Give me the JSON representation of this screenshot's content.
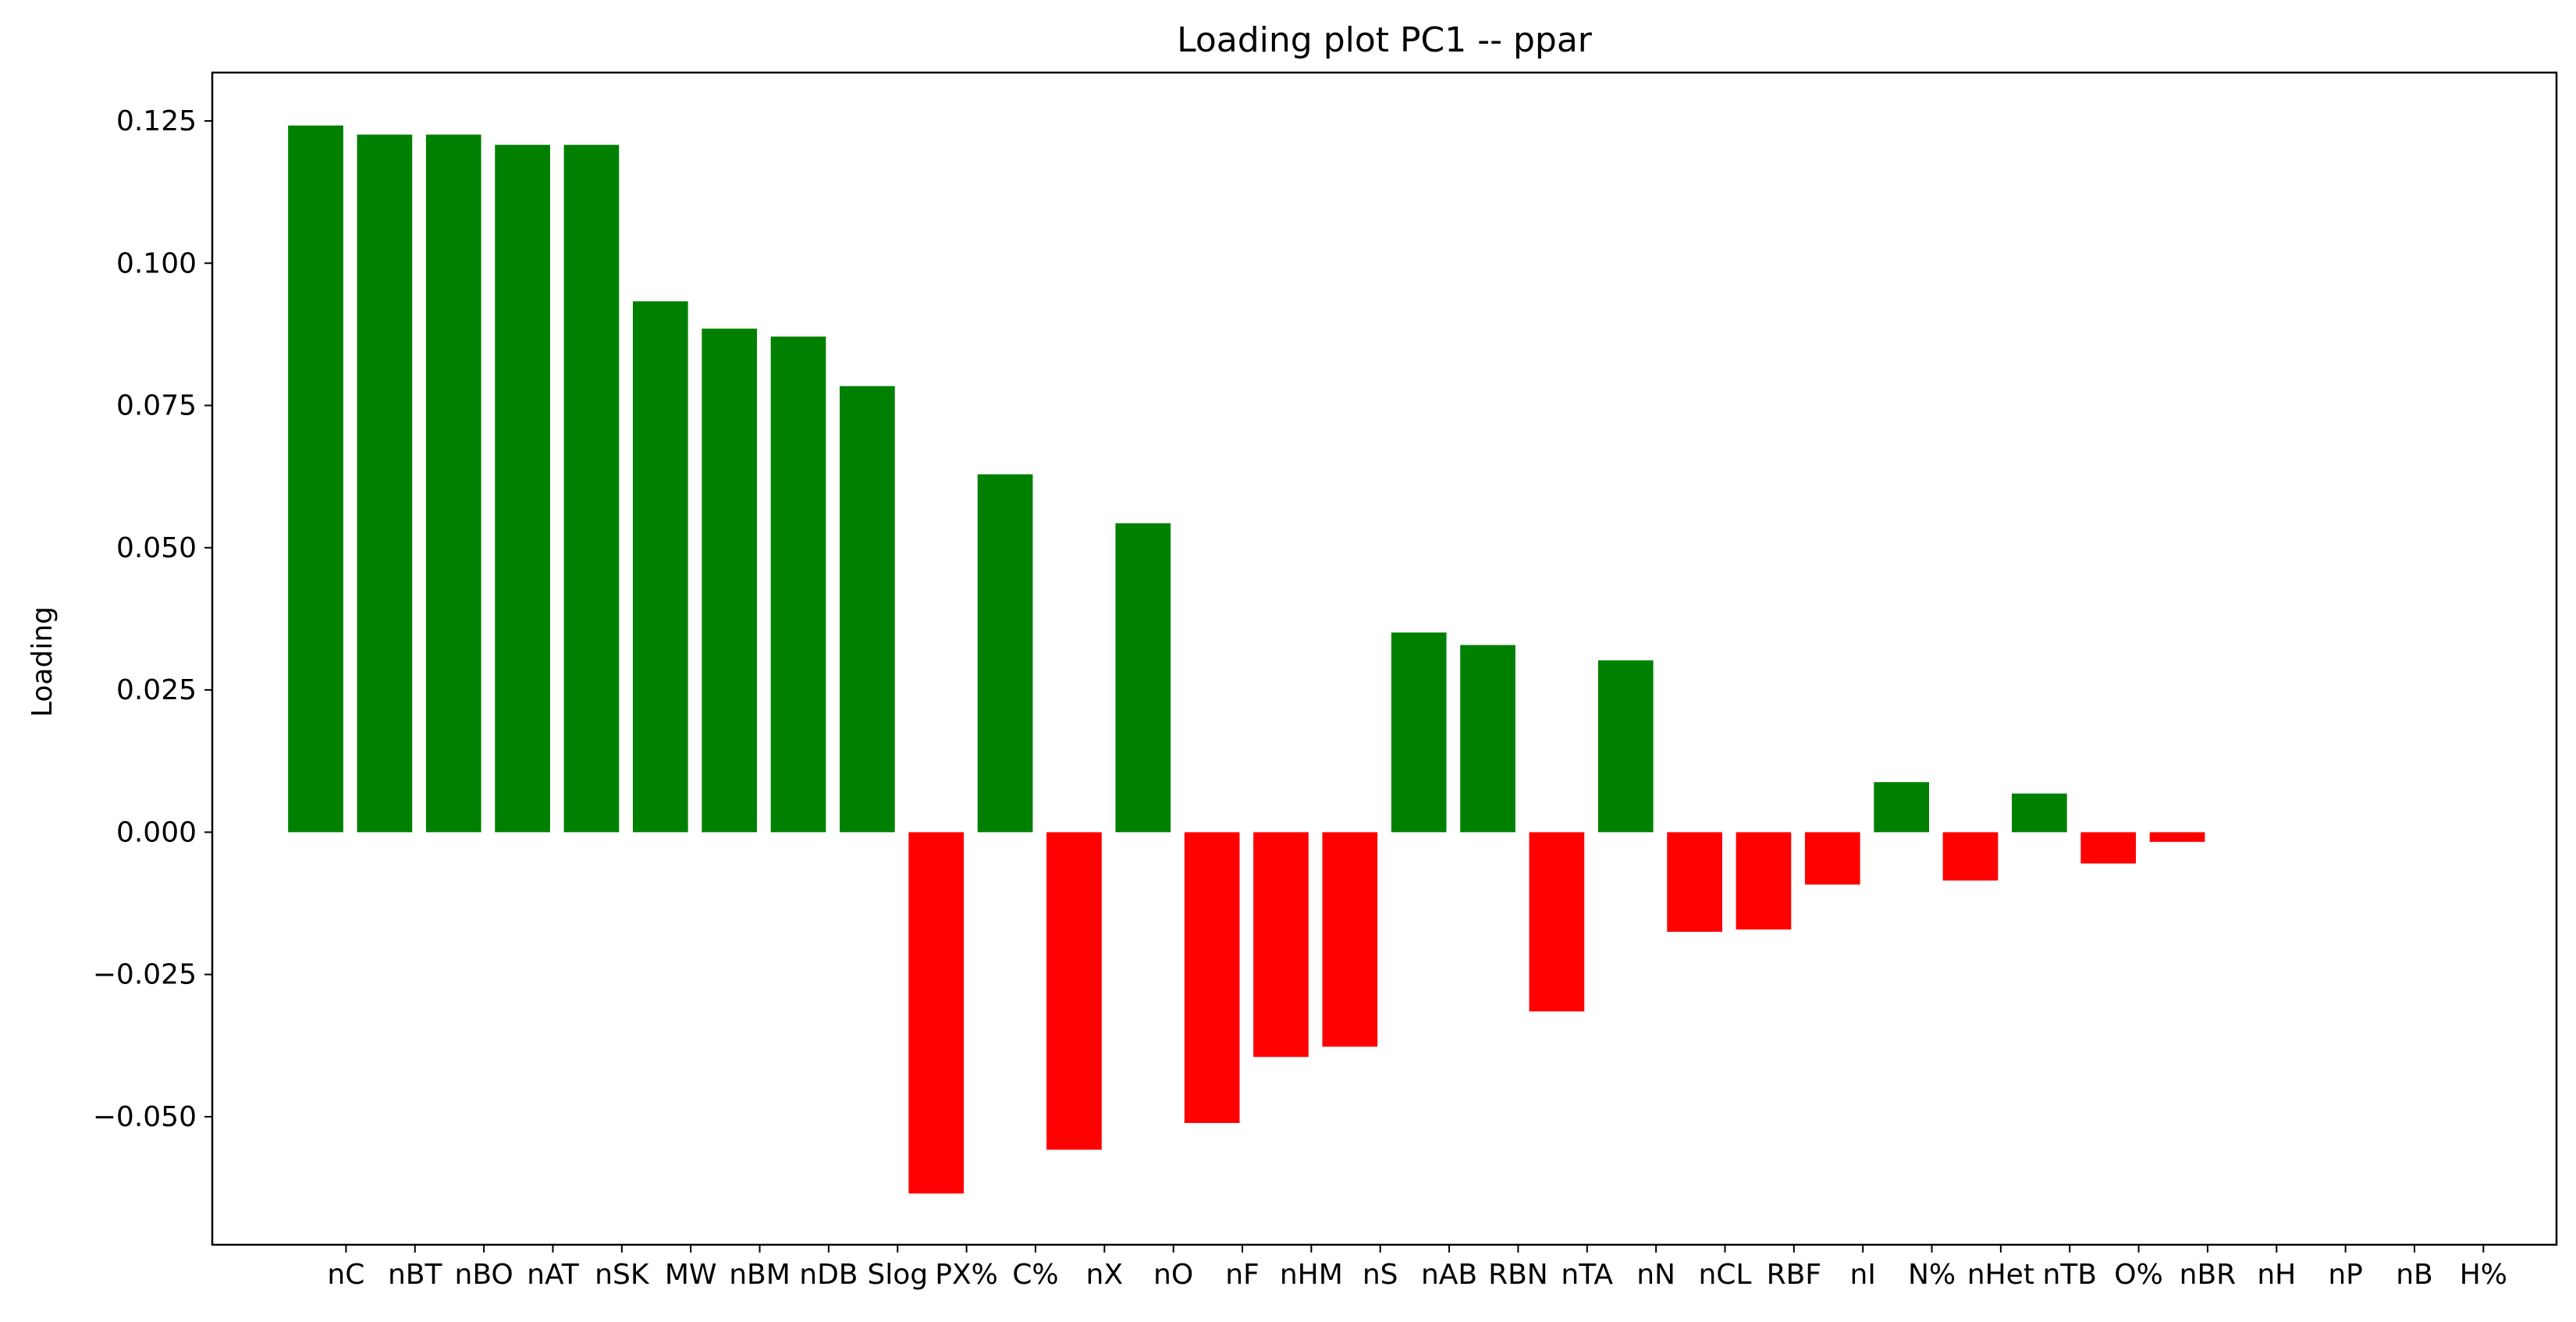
{
  "chart_data": {
    "type": "bar",
    "title": "Loading plot PC1 -- ppar",
    "xlabel": "",
    "ylabel": "Loading",
    "ylim": [
      -0.0725,
      0.1335
    ],
    "yticks": [
      -0.05,
      -0.025,
      0.0,
      0.025,
      0.05,
      0.075,
      0.1,
      0.125
    ],
    "ytick_labels": [
      "−0.050",
      "−0.025",
      "0.000",
      "0.025",
      "0.050",
      "0.075",
      "0.100",
      "0.125"
    ],
    "grid": false,
    "legend": null,
    "positive_color": "#008000",
    "negative_color": "#ff0000",
    "categories": [
      "nC",
      "nBT",
      "nBO",
      "nAT",
      "nSK",
      "MW",
      "nBM",
      "nDB",
      "Slog",
      "PX%",
      "C%",
      "nX",
      "nO",
      "nF",
      "nHM",
      "nS",
      "nAB",
      "RBN",
      "nTA",
      "nN",
      "nCL",
      "RBF",
      "nI",
      "N%",
      "nHet",
      "nTB",
      "O%",
      "nBR",
      "nH",
      "nP",
      "nB",
      "H%"
    ],
    "values": [
      0.1242,
      0.1226,
      0.1226,
      0.1208,
      0.1208,
      0.0933,
      0.0885,
      0.0871,
      0.0784,
      -0.0635,
      0.0629,
      -0.0558,
      0.0543,
      -0.0511,
      -0.0395,
      -0.0377,
      0.0351,
      0.0329,
      -0.0315,
      0.0302,
      -0.0175,
      -0.0171,
      -0.0092,
      0.0088,
      -0.0085,
      0.0068,
      -0.0055,
      -0.0017,
      0.0,
      0.0,
      0.0,
      0.0
    ]
  }
}
